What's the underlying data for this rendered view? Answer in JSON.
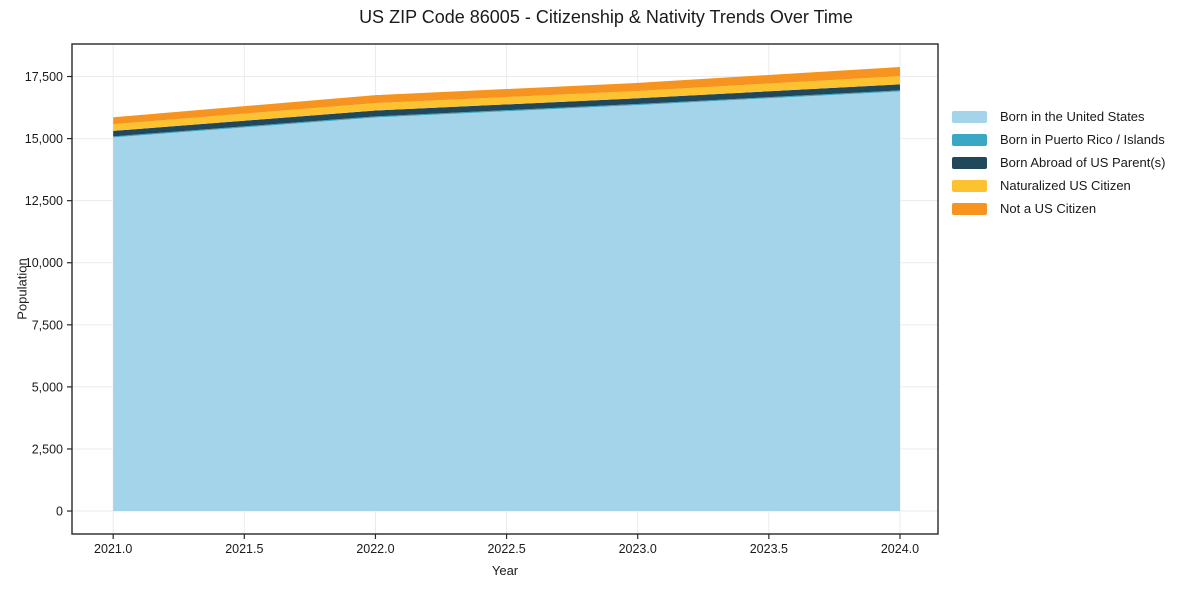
{
  "chart_data": {
    "type": "area",
    "stacked": true,
    "title": "US ZIP Code 86005 - Citizenship & Nativity Trends Over Time",
    "xlabel": "Year",
    "ylabel": "Population",
    "x": [
      2021,
      2022,
      2023,
      2024
    ],
    "series": [
      {
        "name": "Born in the United States",
        "color": "#a3d4ea",
        "values": [
          15050,
          15850,
          16350,
          16900
        ]
      },
      {
        "name": "Born in Puerto Rico / Islands",
        "color": "#3aa7c4",
        "values": [
          40,
          45,
          45,
          45
        ]
      },
      {
        "name": "Born Abroad of US Parent(s)",
        "color": "#20475a",
        "values": [
          220,
          235,
          230,
          240
        ]
      },
      {
        "name": "Naturalized US Citizen",
        "color": "#fcc22f",
        "values": [
          270,
          300,
          290,
          330
        ]
      },
      {
        "name": "Not a US Citizen",
        "color": "#f79420",
        "values": [
          280,
          320,
          330,
          370
        ]
      }
    ],
    "totals": [
      15860,
      16750,
      17245,
      17885
    ],
    "xlim": [
      2020.843,
      2024.145
    ],
    "ylim": [
      -925,
      18810
    ],
    "x_ticks": [
      2021.0,
      2021.5,
      2022.0,
      2022.5,
      2023.0,
      2023.5,
      2024.0
    ],
    "x_tick_labels": [
      "2021.0",
      "2021.5",
      "2022.0",
      "2022.5",
      "2023.0",
      "2023.5",
      "2024.0"
    ],
    "y_ticks": [
      0,
      2500,
      5000,
      7500,
      10000,
      12500,
      15000,
      17500
    ],
    "y_tick_labels": [
      "0",
      "2,500",
      "5,000",
      "7,500",
      "10,000",
      "12,500",
      "15,000",
      "17,500"
    ],
    "grid": true,
    "legend_position": "right-outside",
    "style": {
      "grid_color": "#ebebeb",
      "spine_color": "#24292e",
      "tick_text_color": "#1a1a1a",
      "background": "#ffffff"
    }
  }
}
